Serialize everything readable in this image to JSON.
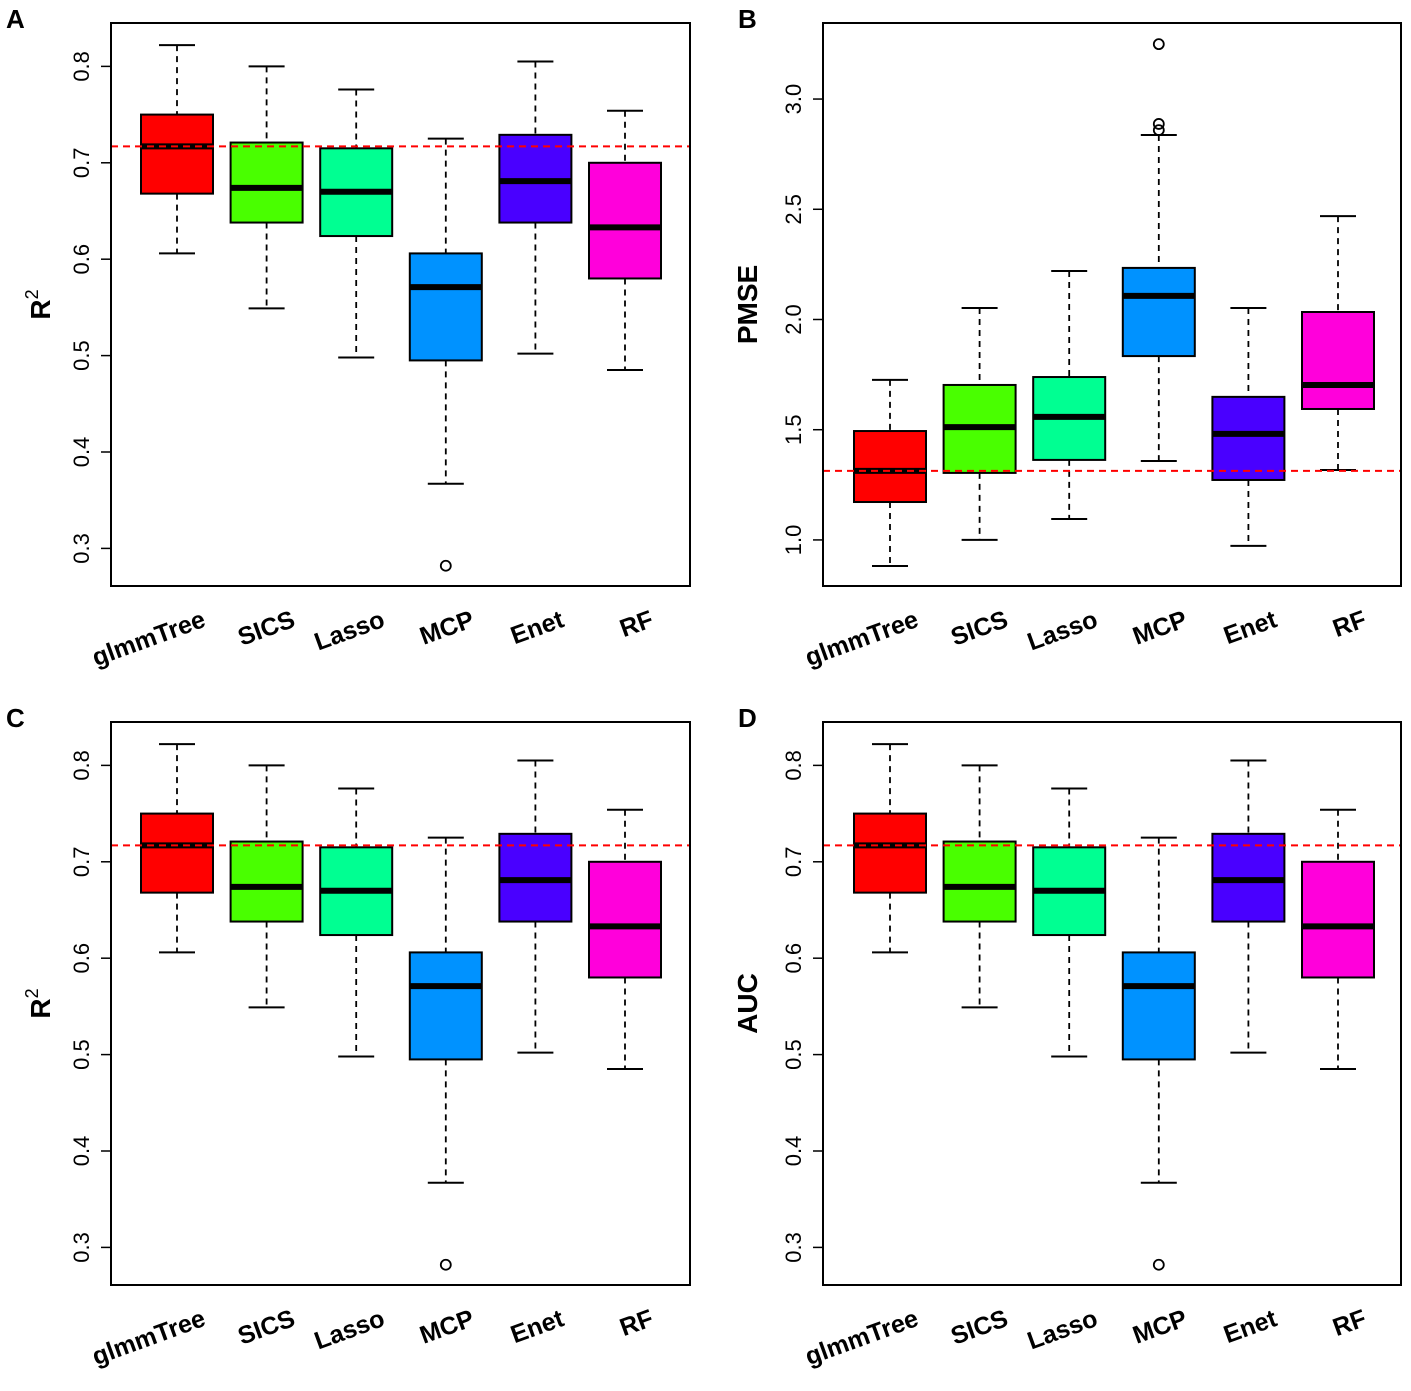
{
  "chart_data": [
    {
      "panel": "A",
      "type": "boxplot",
      "categories": [
        "glmmTree",
        "SICS",
        "Lasso",
        "MCP",
        "Enet",
        "RF"
      ],
      "colors": [
        "#FF0000",
        "#49FF00",
        "#00FF92",
        "#0092FF",
        "#4900FF",
        "#FF00DB"
      ],
      "ylabel": "R",
      "ylabel_sup": "2",
      "ylim": [
        0.261,
        0.845
      ],
      "yticks": [
        0.3,
        0.4,
        0.5,
        0.6,
        0.7,
        0.8
      ],
      "ytick_labels": [
        "0.3",
        "0.4",
        "0.5",
        "0.6",
        "0.7",
        "0.8"
      ],
      "reference_line": 0.717,
      "boxes": [
        {
          "min": 0.606,
          "q1": 0.668,
          "median": 0.717,
          "q3": 0.75,
          "max": 0.822,
          "outliers": []
        },
        {
          "min": 0.549,
          "q1": 0.638,
          "median": 0.674,
          "q3": 0.721,
          "max": 0.8,
          "outliers": []
        },
        {
          "min": 0.498,
          "q1": 0.624,
          "median": 0.67,
          "q3": 0.715,
          "max": 0.776,
          "outliers": []
        },
        {
          "min": 0.367,
          "q1": 0.495,
          "median": 0.571,
          "q3": 0.606,
          "max": 0.725,
          "outliers": [
            0.282
          ]
        },
        {
          "min": 0.502,
          "q1": 0.638,
          "median": 0.681,
          "q3": 0.729,
          "max": 0.805,
          "outliers": []
        },
        {
          "min": 0.485,
          "q1": 0.58,
          "median": 0.633,
          "q3": 0.7,
          "max": 0.754,
          "outliers": []
        }
      ]
    },
    {
      "panel": "B",
      "type": "boxplot",
      "categories": [
        "glmmTree",
        "SICS",
        "Lasso",
        "MCP",
        "Enet",
        "RF"
      ],
      "colors": [
        "#FF0000",
        "#49FF00",
        "#00FF92",
        "#0092FF",
        "#4900FF",
        "#FF00DB"
      ],
      "ylabel": "PMSE",
      "ylabel_sup": "",
      "ylim": [
        0.791,
        3.345
      ],
      "yticks": [
        1.0,
        1.5,
        2.0,
        2.5,
        3.0
      ],
      "ytick_labels": [
        "1.0",
        "1.5",
        "2.0",
        "2.5",
        "3.0"
      ],
      "reference_line": 1.313,
      "boxes": [
        {
          "min": 0.882,
          "q1": 1.172,
          "median": 1.313,
          "q3": 1.494,
          "max": 1.726,
          "outliers": []
        },
        {
          "min": 1.0,
          "q1": 1.304,
          "median": 1.512,
          "q3": 1.703,
          "max": 2.052,
          "outliers": []
        },
        {
          "min": 1.095,
          "q1": 1.363,
          "median": 1.558,
          "q3": 1.739,
          "max": 2.22,
          "outliers": []
        },
        {
          "min": 1.358,
          "q1": 1.834,
          "median": 2.107,
          "q3": 2.234,
          "max": 2.837,
          "outliers": [
            3.249,
            2.887,
            2.859
          ]
        },
        {
          "min": 0.973,
          "q1": 1.272,
          "median": 1.481,
          "q3": 1.649,
          "max": 2.052,
          "outliers": []
        },
        {
          "min": 1.317,
          "q1": 1.594,
          "median": 1.703,
          "q3": 2.034,
          "max": 2.469,
          "outliers": []
        }
      ]
    },
    {
      "panel": "C",
      "type": "boxplot",
      "categories": [
        "glmmTree",
        "SICS",
        "Lasso",
        "MCP",
        "Enet",
        "RF"
      ],
      "colors": [
        "#FF0000",
        "#49FF00",
        "#00FF92",
        "#0092FF",
        "#4900FF",
        "#FF00DB"
      ],
      "ylabel": "R",
      "ylabel_sup": "2",
      "ylim": [
        0.261,
        0.845
      ],
      "yticks": [
        0.3,
        0.4,
        0.5,
        0.6,
        0.7,
        0.8
      ],
      "ytick_labels": [
        "0.3",
        "0.4",
        "0.5",
        "0.6",
        "0.7",
        "0.8"
      ],
      "reference_line": 0.717,
      "boxes": [
        {
          "min": 0.606,
          "q1": 0.668,
          "median": 0.717,
          "q3": 0.75,
          "max": 0.822,
          "outliers": []
        },
        {
          "min": 0.549,
          "q1": 0.638,
          "median": 0.674,
          "q3": 0.721,
          "max": 0.8,
          "outliers": []
        },
        {
          "min": 0.498,
          "q1": 0.624,
          "median": 0.67,
          "q3": 0.715,
          "max": 0.776,
          "outliers": []
        },
        {
          "min": 0.367,
          "q1": 0.495,
          "median": 0.571,
          "q3": 0.606,
          "max": 0.725,
          "outliers": [
            0.282
          ]
        },
        {
          "min": 0.502,
          "q1": 0.638,
          "median": 0.681,
          "q3": 0.729,
          "max": 0.805,
          "outliers": []
        },
        {
          "min": 0.485,
          "q1": 0.58,
          "median": 0.633,
          "q3": 0.7,
          "max": 0.754,
          "outliers": []
        }
      ]
    },
    {
      "panel": "D",
      "type": "boxplot",
      "categories": [
        "glmmTree",
        "SICS",
        "Lasso",
        "MCP",
        "Enet",
        "RF"
      ],
      "colors": [
        "#FF0000",
        "#49FF00",
        "#00FF92",
        "#0092FF",
        "#4900FF",
        "#FF00DB"
      ],
      "ylabel": "AUC",
      "ylabel_sup": "",
      "ylim": [
        0.261,
        0.845
      ],
      "yticks": [
        0.3,
        0.4,
        0.5,
        0.6,
        0.7,
        0.8
      ],
      "ytick_labels": [
        "0.3",
        "0.4",
        "0.5",
        "0.6",
        "0.7",
        "0.8"
      ],
      "reference_line": 0.717,
      "boxes": [
        {
          "min": 0.606,
          "q1": 0.668,
          "median": 0.717,
          "q3": 0.75,
          "max": 0.822,
          "outliers": []
        },
        {
          "min": 0.549,
          "q1": 0.638,
          "median": 0.674,
          "q3": 0.721,
          "max": 0.8,
          "outliers": []
        },
        {
          "min": 0.498,
          "q1": 0.624,
          "median": 0.67,
          "q3": 0.715,
          "max": 0.776,
          "outliers": []
        },
        {
          "min": 0.367,
          "q1": 0.495,
          "median": 0.571,
          "q3": 0.606,
          "max": 0.725,
          "outliers": [
            0.282
          ]
        },
        {
          "min": 0.502,
          "q1": 0.638,
          "median": 0.681,
          "q3": 0.729,
          "max": 0.805,
          "outliers": []
        },
        {
          "min": 0.485,
          "q1": 0.58,
          "median": 0.633,
          "q3": 0.7,
          "max": 0.754,
          "outliers": []
        }
      ]
    }
  ]
}
